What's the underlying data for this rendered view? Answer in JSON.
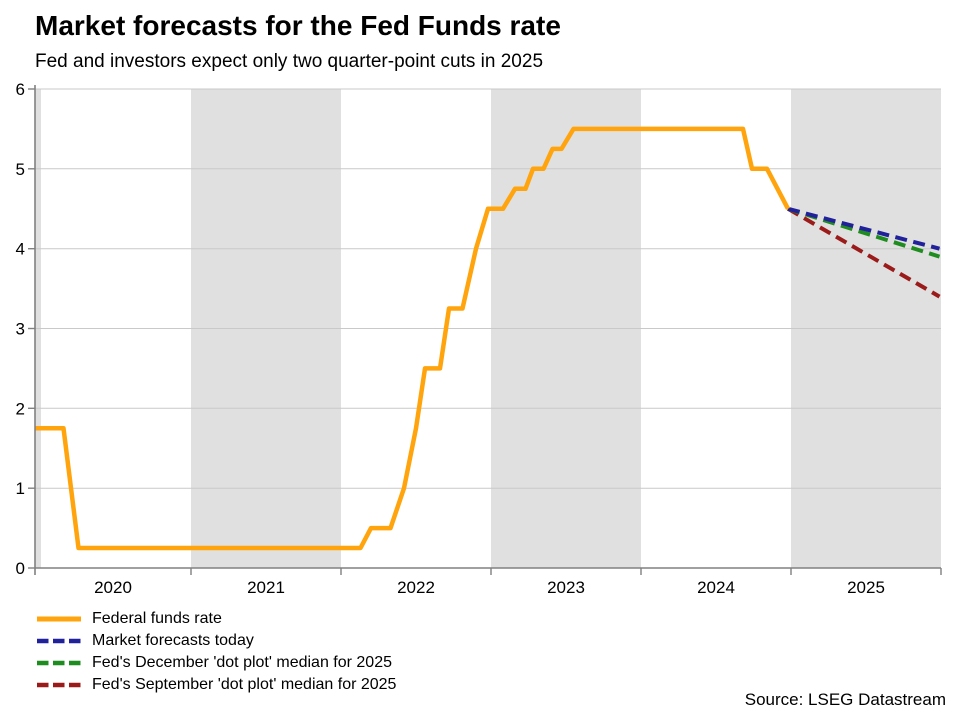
{
  "source": "Source: LSEG Datastream",
  "chart_data": {
    "type": "line",
    "title": "Market forecasts for the Fed Funds rate",
    "subtitle": "Fed and investors expect only two quarter-point cuts in 2025",
    "xlabel": "",
    "ylabel": "",
    "ylim": [
      0,
      6
    ],
    "x_range": [
      2019.96,
      2026.0
    ],
    "y_ticks": [
      0,
      1,
      2,
      3,
      4,
      5,
      6
    ],
    "x_tick_boundaries": [
      2021,
      2022,
      2023,
      2024,
      2025,
      2026
    ],
    "x_labels": [
      {
        "text": "2020",
        "x": 2020.48
      },
      {
        "text": "2021",
        "x": 2021.5
      },
      {
        "text": "2022",
        "x": 2022.5
      },
      {
        "text": "2023",
        "x": 2023.5
      },
      {
        "text": "2024",
        "x": 2024.5
      },
      {
        "text": "2025",
        "x": 2025.5
      }
    ],
    "shaded_spans": [
      [
        2019.96,
        2020.0
      ],
      [
        2021.0,
        2022.0
      ],
      [
        2023.0,
        2024.0
      ],
      [
        2025.0,
        2026.0
      ]
    ],
    "grid": "horizontal",
    "legend_position": "bottom-left",
    "colors": {
      "band": "#e0e0e0",
      "grid": "#c9c9c9",
      "axis": "#808080",
      "text": "#000000"
    },
    "series": [
      {
        "name": "Federal funds rate",
        "color": "#ffa40d",
        "dash": null,
        "width": 4.5,
        "points": [
          [
            2019.96,
            1.75
          ],
          [
            2020.15,
            1.75
          ],
          [
            2020.25,
            0.25
          ],
          [
            2022.13,
            0.25
          ],
          [
            2022.2,
            0.5
          ],
          [
            2022.33,
            0.5
          ],
          [
            2022.42,
            1.0
          ],
          [
            2022.5,
            1.75
          ],
          [
            2022.56,
            2.5
          ],
          [
            2022.66,
            2.5
          ],
          [
            2022.72,
            3.25
          ],
          [
            2022.81,
            3.25
          ],
          [
            2022.9,
            4.0
          ],
          [
            2022.98,
            4.5
          ],
          [
            2023.08,
            4.5
          ],
          [
            2023.16,
            4.75
          ],
          [
            2023.23,
            4.75
          ],
          [
            2023.28,
            5.0
          ],
          [
            2023.35,
            5.0
          ],
          [
            2023.41,
            5.25
          ],
          [
            2023.47,
            5.25
          ],
          [
            2023.55,
            5.5
          ],
          [
            2024.68,
            5.5
          ],
          [
            2024.74,
            5.0
          ],
          [
            2024.84,
            5.0
          ],
          [
            2024.98,
            4.5
          ]
        ]
      },
      {
        "name": "Market forecasts today",
        "color": "#21219b",
        "dash": "12,6.5",
        "width": 4,
        "points": [
          [
            2024.98,
            4.5
          ],
          [
            2025.99,
            4.0
          ]
        ]
      },
      {
        "name": "Fed's December 'dot plot' median for 2025",
        "color": "#1f8c1f",
        "dash": "12,6.5",
        "width": 4,
        "points": [
          [
            2024.98,
            4.5
          ],
          [
            2025.99,
            3.9
          ]
        ]
      },
      {
        "name": "Fed's September 'dot plot' median for 2025",
        "color": "#9b1b1b",
        "dash": "12,6.5",
        "width": 4,
        "points": [
          [
            2024.98,
            4.5
          ],
          [
            2025.99,
            3.4
          ]
        ]
      }
    ]
  }
}
